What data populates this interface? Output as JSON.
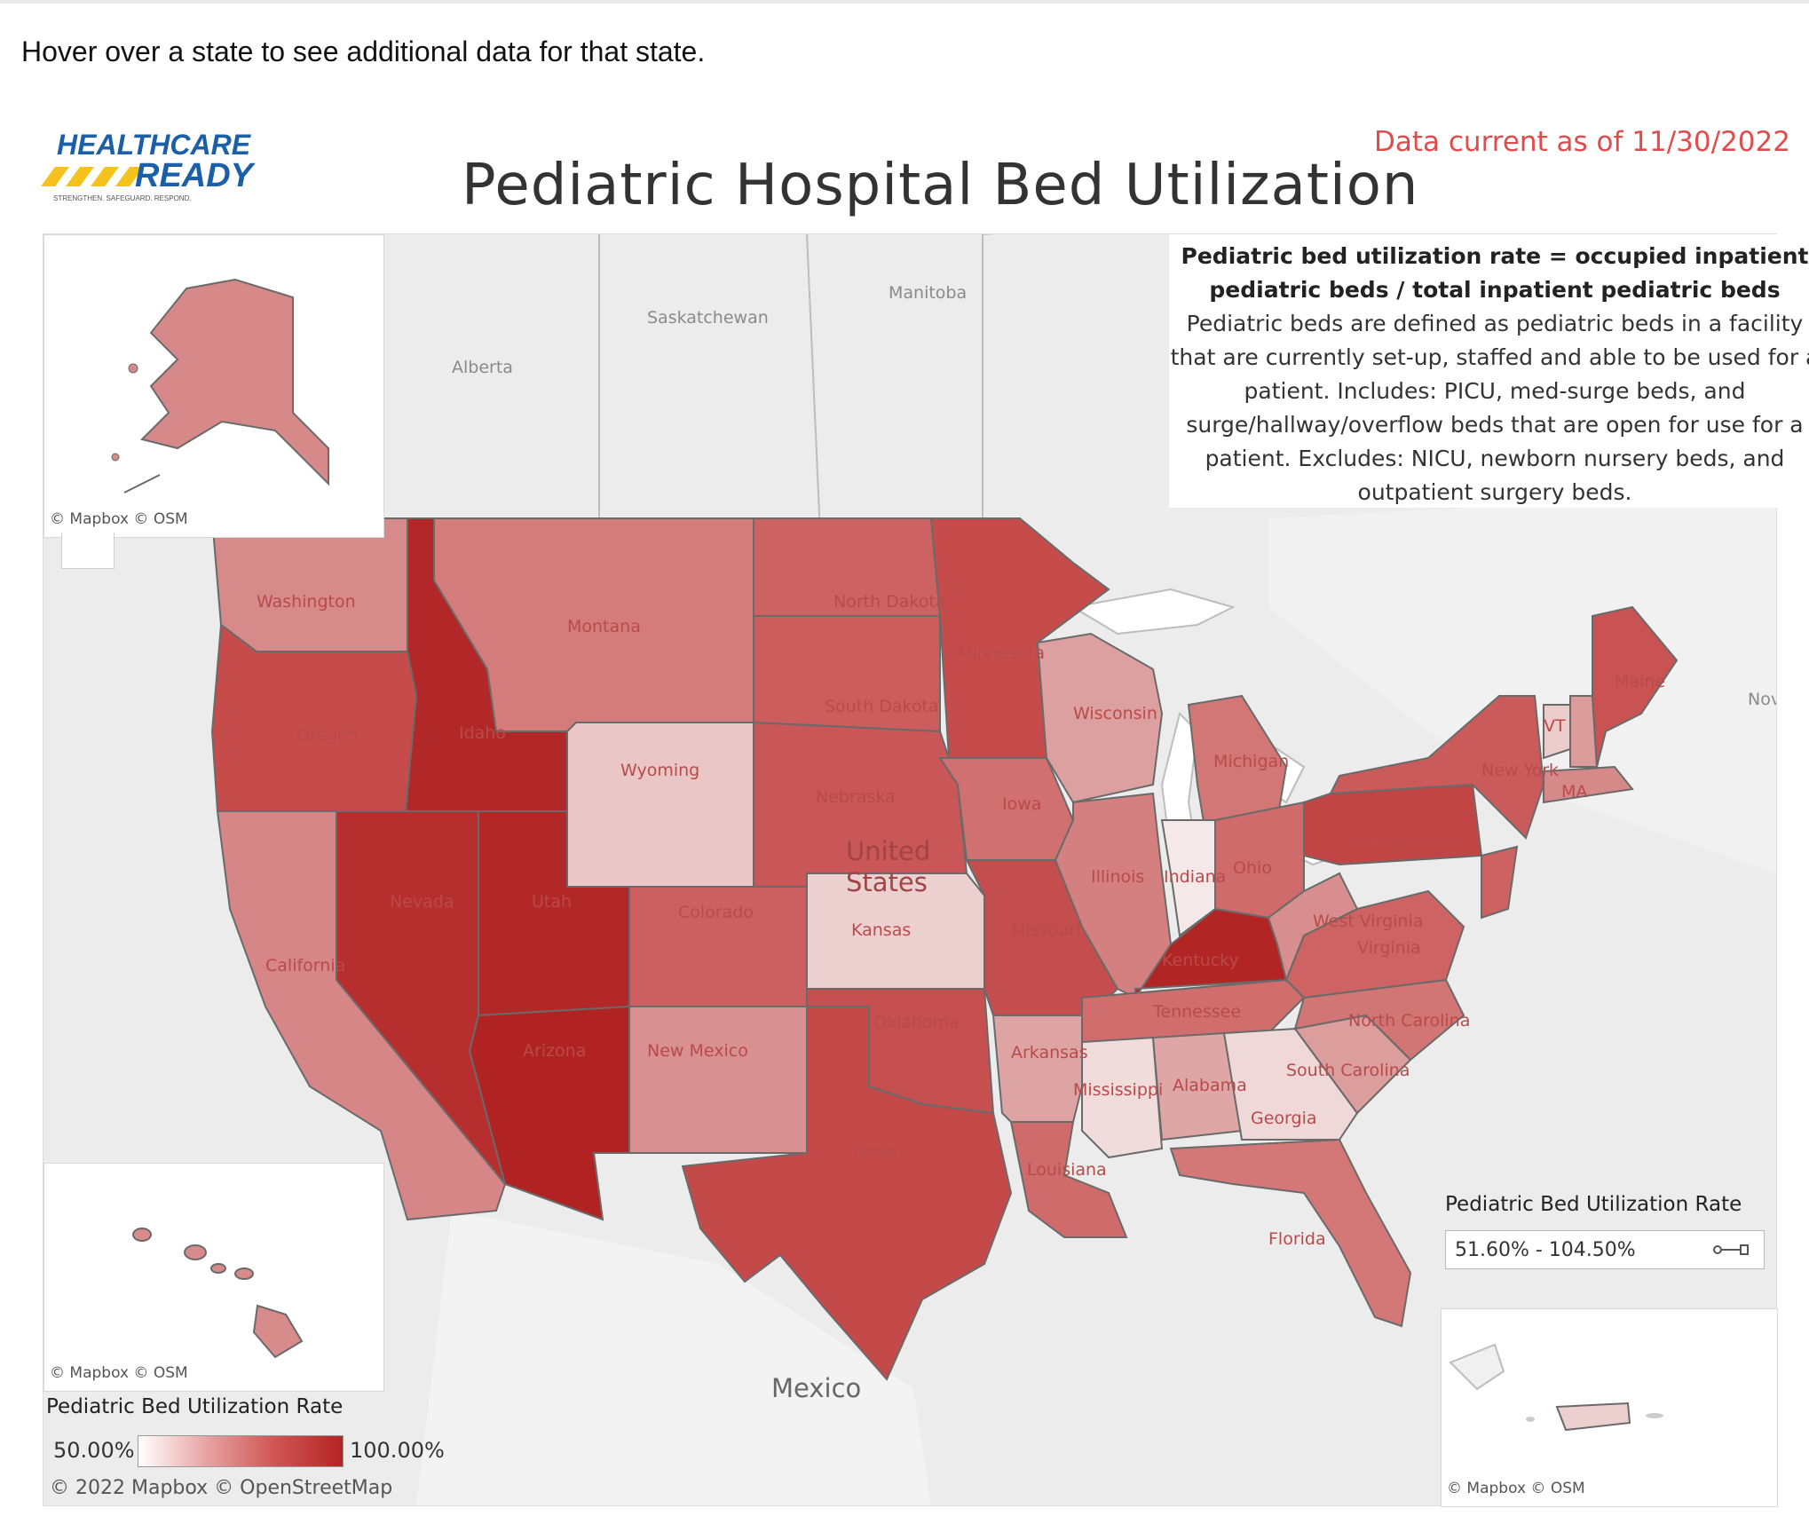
{
  "intro_text": "Hover over a state to see additional data for that state.",
  "logo": {
    "line1": "HEALTHCARE",
    "line2": "READY",
    "tagline": "STRENGTHEN. SAFEGUARD. RESPOND."
  },
  "updated": "Data current as of 11/30/2022",
  "title": "Pediatric Hospital Bed Utilization",
  "definition": {
    "bold": "Pediatric bed utilization rate = occupied inpatient pediatric beds / total inpatient pediatric beds",
    "body": "Pediatric beds are defined as pediatric beds in a facility that are currently set-up, staffed and able to be used for a patient. Includes: PICU, med-surge beds, and surge/hallway/overflow beds that are open for use for a patient. Excludes: NICU, newborn nursery beds, and outpatient surgery beds."
  },
  "map_labels": {
    "canada": [
      "Manitoba",
      "Saskatchewan",
      "Alberta"
    ],
    "us": [
      "United",
      "States"
    ],
    "mexico": "Mexico",
    "partial": "Nov"
  },
  "states": [
    {
      "name": "Washington",
      "color": "#d78a8a"
    },
    {
      "name": "Montana",
      "color": "#d47c7c"
    },
    {
      "name": "North Dakota",
      "color": "#cc6262"
    },
    {
      "name": "Minnesota",
      "color": "#c64c4c"
    },
    {
      "name": "Oregon",
      "color": "#c64c4c"
    },
    {
      "name": "Idaho",
      "color": "#b22727"
    },
    {
      "name": "South Dakota",
      "color": "#cb5d5d"
    },
    {
      "name": "Wisconsin",
      "color": "#dca0a0"
    },
    {
      "name": "Michigan",
      "color": "#d37676"
    },
    {
      "name": "Wyoming",
      "color": "#ebc6c6"
    },
    {
      "name": "Iowa",
      "color": "#d07070"
    },
    {
      "name": "Nebraska",
      "color": "#c95757"
    },
    {
      "name": "New York",
      "color": "#cb5b5b"
    },
    {
      "name": "Maine",
      "color": "#c95353"
    },
    {
      "name": "VT",
      "color": "#edcccc"
    },
    {
      "name": "MA",
      "color": "#d68989"
    },
    {
      "name": "Nevada",
      "color": "#b72e2e"
    },
    {
      "name": "Utah",
      "color": "#b22727"
    },
    {
      "name": "Colorado",
      "color": "#cc6060"
    },
    {
      "name": "Kansas",
      "color": "#ecd0d0"
    },
    {
      "name": "Missouri",
      "color": "#c44d4d"
    },
    {
      "name": "Illinois",
      "color": "#d48080"
    },
    {
      "name": "Indiana",
      "color": "#f4e8e8"
    },
    {
      "name": "Ohio",
      "color": "#d06b6b"
    },
    {
      "name": "Pennsylvania",
      "color": "#c24545"
    },
    {
      "name": "West Virginia",
      "color": "#d88e8e"
    },
    {
      "name": "California",
      "color": "#d68686"
    },
    {
      "name": "Kentucky",
      "color": "#b12525"
    },
    {
      "name": "Virginia",
      "color": "#cd6363"
    },
    {
      "name": "Arizona",
      "color": "#b12323"
    },
    {
      "name": "New Mexico",
      "color": "#d99090"
    },
    {
      "name": "Oklahoma",
      "color": "#c64f4f"
    },
    {
      "name": "Tennessee",
      "color": "#d06e6e"
    },
    {
      "name": "North Carolina",
      "color": "#d27575"
    },
    {
      "name": "Arkansas",
      "color": "#dea3a3"
    },
    {
      "name": "Texas",
      "color": "#c44a4a"
    },
    {
      "name": "Mississippi",
      "color": "#f1dcdc"
    },
    {
      "name": "Alabama",
      "color": "#dfa6a6"
    },
    {
      "name": "Georgia",
      "color": "#eed8d8"
    },
    {
      "name": "South Carolina",
      "color": "#dc9d9d"
    },
    {
      "name": "Louisiana",
      "color": "#cf6b6b"
    },
    {
      "name": "Florida",
      "color": "#d37777"
    },
    {
      "name": "Alaska",
      "color": "#d78888"
    },
    {
      "name": "Hawaii",
      "color": "#d88b8b"
    },
    {
      "name": "Puerto Rico",
      "color": "#ecd0d0"
    }
  ],
  "insets": {
    "credit_mapbox": "© Mapbox",
    "credit_osm": "© OSM"
  },
  "legend": {
    "title": "Pediatric Bed Utilization Rate",
    "min": "50.00%",
    "max": "100.00%",
    "filter_title": "Pediatric Bed Utilization Rate",
    "filter_range": "51.60% - 104.50%"
  },
  "footer_credit": "© 2022 Mapbox  © OpenStreetMap"
}
